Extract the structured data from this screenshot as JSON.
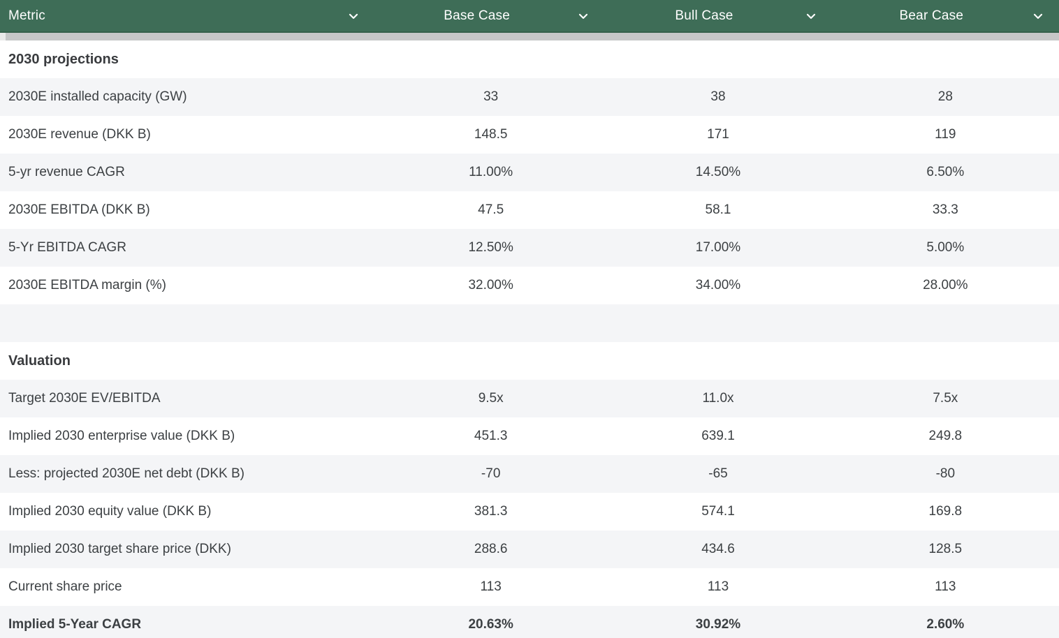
{
  "colors": {
    "header_bg": "#3E6D57",
    "header_border": "#35604B",
    "row_alt": "#F4F5F7",
    "scroll_track": "#EAEAEA",
    "scroll_thumb": "#C6C7C8",
    "text": "#3C4043"
  },
  "header": {
    "columns": [
      {
        "label": "Metric",
        "icon": "chevron-down-icon"
      },
      {
        "label": "Base Case",
        "icon": "chevron-down-icon"
      },
      {
        "label": "Bull Case",
        "icon": "chevron-down-icon"
      },
      {
        "label": "Bear Case",
        "icon": "chevron-down-icon"
      }
    ]
  },
  "table": {
    "rows": [
      {
        "type": "section",
        "label": "2030 projections"
      },
      {
        "type": "data",
        "label": "2030E installed capacity (GW)",
        "base": "33",
        "bull": "38",
        "bear": "28"
      },
      {
        "type": "data",
        "label": "2030E revenue (DKK B)",
        "base": "148.5",
        "bull": "171",
        "bear": "119"
      },
      {
        "type": "data",
        "label": "5-yr revenue CAGR",
        "base": "11.00%",
        "bull": "14.50%",
        "bear": "6.50%"
      },
      {
        "type": "data",
        "label": "2030E EBITDA (DKK B)",
        "base": "47.5",
        "bull": "58.1",
        "bear": "33.3"
      },
      {
        "type": "data",
        "label": "5-Yr EBITDA CAGR",
        "base": "12.50%",
        "bull": "17.00%",
        "bear": "5.00%"
      },
      {
        "type": "data",
        "label": "2030E EBITDA margin (%)",
        "base": "32.00%",
        "bull": "34.00%",
        "bear": "28.00%"
      },
      {
        "type": "empty"
      },
      {
        "type": "section",
        "label": "Valuation"
      },
      {
        "type": "data",
        "label": "Target 2030E EV/EBITDA",
        "base": "9.5x",
        "bull": "11.0x",
        "bear": "7.5x"
      },
      {
        "type": "data",
        "label": "Implied 2030 enterprise value (DKK B)",
        "base": "451.3",
        "bull": "639.1",
        "bear": "249.8"
      },
      {
        "type": "data",
        "label": "Less: projected 2030E net debt (DKK B)",
        "base": "-70",
        "bull": "-65",
        "bear": "-80"
      },
      {
        "type": "data",
        "label": "Implied 2030 equity value (DKK B)",
        "base": "381.3",
        "bull": "574.1",
        "bear": "169.8"
      },
      {
        "type": "data",
        "label": "Implied 2030 target share price (DKK)",
        "base": "288.6",
        "bull": "434.6",
        "bear": "128.5"
      },
      {
        "type": "data",
        "label": "Current share price",
        "base": "113",
        "bull": "113",
        "bear": "113"
      },
      {
        "type": "data",
        "label": "Implied 5-Year CAGR",
        "base": "20.63%",
        "bull": "30.92%",
        "bear": "2.60%",
        "bold": true
      }
    ]
  }
}
